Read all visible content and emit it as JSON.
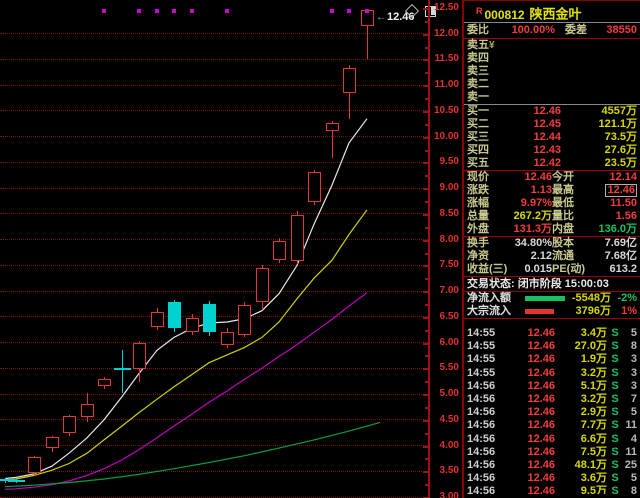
{
  "colors": {
    "up": "#e23535",
    "down": "#00d2d2",
    "ma_white": "#e8e8e8",
    "ma_yellow": "#d0d000",
    "ma_magenta": "#c000c0",
    "ma_green": "#00a040",
    "grid": "#7a1212",
    "axis_text": "#e03030",
    "mark": "#d000d0",
    "red": "#f23c3c",
    "green": "#18c060",
    "yellow": "#d8d800",
    "white": "#d8d8d8"
  },
  "chart_data": {
    "type": "candlestick",
    "y_axis": {
      "max": 12.5,
      "min": 3.0,
      "tick_labels": [
        "12.50",
        "12.00",
        "11.50",
        "11.00",
        "10.50",
        "10.00",
        "9.50",
        "9.00",
        "8.50",
        "8.00",
        "7.50",
        "7.00",
        "6.50",
        "6.00",
        "5.50",
        "5.00",
        "4.50",
        "4.00",
        "3.50",
        "3.00"
      ]
    },
    "last_price_label": "12.46",
    "candles": [
      [
        5,
        3.34,
        3.37,
        3.28,
        3.31,
        "d"
      ],
      [
        16,
        3.31,
        3.36,
        3.27,
        3.33,
        "d"
      ],
      [
        34,
        3.47,
        3.8,
        3.45,
        3.78,
        "u"
      ],
      [
        52,
        3.95,
        4.18,
        3.86,
        4.16,
        "u"
      ],
      [
        69,
        4.24,
        4.6,
        4.2,
        4.57,
        "u"
      ],
      [
        87,
        4.56,
        5.03,
        4.47,
        4.81,
        "u"
      ],
      [
        104,
        5.16,
        5.33,
        5.1,
        5.29,
        "u"
      ],
      [
        122,
        5.5,
        5.86,
        5.03,
        5.5,
        "d"
      ],
      [
        139,
        5.49,
        6.04,
        5.24,
        6.0,
        "u"
      ],
      [
        157,
        6.3,
        6.67,
        6.25,
        6.6,
        "u"
      ],
      [
        174,
        6.79,
        6.82,
        6.2,
        6.28,
        "d"
      ],
      [
        192,
        6.21,
        6.55,
        6.15,
        6.48,
        "u"
      ],
      [
        209,
        6.75,
        6.8,
        6.12,
        6.2,
        "d"
      ],
      [
        227,
        5.95,
        6.28,
        5.9,
        6.21,
        "u"
      ],
      [
        244,
        6.15,
        6.78,
        6.1,
        6.73,
        "u"
      ],
      [
        262,
        6.79,
        7.5,
        6.63,
        7.45,
        "u"
      ],
      [
        279,
        7.62,
        8.03,
        7.55,
        7.98,
        "u"
      ],
      [
        297,
        7.58,
        8.55,
        7.52,
        8.48,
        "u"
      ],
      [
        314,
        8.74,
        9.36,
        8.68,
        9.32,
        "u"
      ],
      [
        332,
        10.11,
        10.31,
        9.59,
        10.26,
        "u"
      ],
      [
        349,
        10.85,
        11.4,
        10.36,
        11.33,
        "u"
      ],
      [
        367,
        12.14,
        12.46,
        11.5,
        12.46,
        "u"
      ]
    ],
    "ma_lines": [
      {
        "name": "ma-short-white",
        "color": "ma_white",
        "points": [
          [
            5,
            3.36
          ],
          [
            16,
            3.38
          ],
          [
            34,
            3.45
          ],
          [
            52,
            3.6
          ],
          [
            69,
            3.85
          ],
          [
            87,
            4.15
          ],
          [
            104,
            4.5
          ],
          [
            122,
            4.95
          ],
          [
            139,
            5.4
          ],
          [
            157,
            5.85
          ],
          [
            174,
            6.1
          ],
          [
            192,
            6.28
          ],
          [
            209,
            6.38
          ],
          [
            227,
            6.4
          ],
          [
            244,
            6.46
          ],
          [
            262,
            6.62
          ],
          [
            279,
            6.95
          ],
          [
            297,
            7.5
          ],
          [
            314,
            8.3
          ],
          [
            332,
            9.06
          ],
          [
            349,
            9.88
          ],
          [
            367,
            10.35
          ]
        ]
      },
      {
        "name": "ma-mid-yellow",
        "color": "ma_yellow",
        "points": [
          [
            5,
            3.33
          ],
          [
            16,
            3.35
          ],
          [
            34,
            3.42
          ],
          [
            52,
            3.52
          ],
          [
            69,
            3.65
          ],
          [
            87,
            3.85
          ],
          [
            104,
            4.11
          ],
          [
            122,
            4.38
          ],
          [
            139,
            4.64
          ],
          [
            157,
            4.9
          ],
          [
            174,
            5.14
          ],
          [
            192,
            5.38
          ],
          [
            209,
            5.61
          ],
          [
            227,
            5.76
          ],
          [
            244,
            5.9
          ],
          [
            262,
            6.1
          ],
          [
            279,
            6.4
          ],
          [
            297,
            6.85
          ],
          [
            314,
            7.25
          ],
          [
            332,
            7.6
          ],
          [
            349,
            8.1
          ],
          [
            367,
            8.58
          ]
        ]
      },
      {
        "name": "ma-long-magenta",
        "color": "ma_magenta",
        "points": [
          [
            5,
            3.15
          ],
          [
            16,
            3.16
          ],
          [
            34,
            3.19
          ],
          [
            52,
            3.24
          ],
          [
            69,
            3.31
          ],
          [
            87,
            3.42
          ],
          [
            104,
            3.55
          ],
          [
            122,
            3.72
          ],
          [
            139,
            3.92
          ],
          [
            157,
            4.15
          ],
          [
            174,
            4.38
          ],
          [
            192,
            4.61
          ],
          [
            209,
            4.84
          ],
          [
            227,
            5.06
          ],
          [
            244,
            5.28
          ],
          [
            262,
            5.5
          ],
          [
            279,
            5.73
          ],
          [
            297,
            5.96
          ],
          [
            314,
            6.2
          ],
          [
            332,
            6.45
          ],
          [
            349,
            6.71
          ],
          [
            367,
            6.97
          ]
        ]
      },
      {
        "name": "ma-longest-green",
        "color": "ma_green",
        "points": [
          [
            5,
            3.2
          ],
          [
            34,
            3.23
          ],
          [
            69,
            3.28
          ],
          [
            104,
            3.35
          ],
          [
            139,
            3.44
          ],
          [
            174,
            3.55
          ],
          [
            209,
            3.67
          ],
          [
            244,
            3.8
          ],
          [
            279,
            3.95
          ],
          [
            314,
            4.11
          ],
          [
            349,
            4.28
          ],
          [
            380,
            4.45
          ]
        ]
      }
    ],
    "mark_dots_x": [
      104,
      139,
      157,
      174,
      192,
      227,
      332,
      349,
      367
    ],
    "price_tag_arrow": "←"
  },
  "stock": {
    "prefix": "R",
    "code": "000812",
    "name": "陕西金叶"
  },
  "order_book": {
    "weibi_label": "委比",
    "weibi_value": "100.00%",
    "weicha_label": "委差",
    "weicha_value": "38550",
    "sell_extra": "¥",
    "sells": [
      {
        "label": "卖五",
        "price": "",
        "vol": ""
      },
      {
        "label": "卖四",
        "price": "",
        "vol": ""
      },
      {
        "label": "卖三",
        "price": "",
        "vol": ""
      },
      {
        "label": "卖二",
        "price": "",
        "vol": ""
      },
      {
        "label": "卖一",
        "price": "",
        "vol": ""
      }
    ],
    "buys": [
      {
        "label": "买一",
        "price": "12.46",
        "vol": "4557万"
      },
      {
        "label": "买二",
        "price": "12.45",
        "vol": "121.1万"
      },
      {
        "label": "买三",
        "price": "12.44",
        "vol": "73.5万"
      },
      {
        "label": "买四",
        "price": "12.43",
        "vol": "27.6万"
      },
      {
        "label": "买五",
        "price": "12.42",
        "vol": "23.5万"
      }
    ]
  },
  "stats_block1": [
    {
      "l1": "现价",
      "v1": "12.46",
      "c1": "r",
      "l2": "今开",
      "v2": "12.14",
      "c2": "r",
      "box2": false
    },
    {
      "l1": "涨跌",
      "v1": "1.13",
      "c1": "r",
      "l2": "最高",
      "v2": "12.46",
      "c2": "r",
      "box2": true
    },
    {
      "l1": "涨幅",
      "v1": "9.97%",
      "c1": "r",
      "l2": "最低",
      "v2": "11.50",
      "c2": "r",
      "box2": false
    },
    {
      "l1": "总量",
      "v1": "267.2万",
      "c1": "y",
      "l2": "量比",
      "v2": "1.56",
      "c2": "r",
      "box2": false
    },
    {
      "l1": "外盘",
      "v1": "131.3万",
      "c1": "r",
      "l2": "内盘",
      "v2": "136.0万",
      "c2": "g",
      "box2": false
    }
  ],
  "stats_block2": [
    {
      "l1": "换手",
      "v1": "34.80%",
      "c1": "w",
      "l2": "股本",
      "v2": "7.69亿",
      "c2": "w",
      "box2": false
    },
    {
      "l1": "净资",
      "v1": "2.12",
      "c1": "w",
      "l2": "流通",
      "v2": "7.68亿",
      "c2": "w",
      "box2": false
    },
    {
      "l1": "收益(三)",
      "v1": "0.015",
      "c1": "w",
      "l2": "PE(动)",
      "v2": "613.2",
      "c2": "w",
      "box2": false
    }
  ],
  "status": {
    "label": "交易状态:",
    "value": "闭市阶段 15:00:03"
  },
  "flows": [
    {
      "label": "净流入额",
      "bar_color": "#18c060",
      "bar_len": 40,
      "value": "-5548万",
      "vc": "y",
      "pct": "-2%",
      "pc": "g"
    },
    {
      "label": "大宗流入",
      "bar_color": "#e23535",
      "bar_len": 29,
      "value": "3796万",
      "vc": "y",
      "pct": "1%",
      "pc": "r"
    }
  ],
  "ticks": [
    {
      "time": "14:55",
      "price": "12.46",
      "vol": "3.4万",
      "side": "S",
      "count": "5"
    },
    {
      "time": "14:55",
      "price": "12.46",
      "vol": "27.0万",
      "side": "S",
      "count": "8"
    },
    {
      "time": "14:55",
      "price": "12.46",
      "vol": "1.9万",
      "side": "S",
      "count": "3"
    },
    {
      "time": "14:55",
      "price": "12.46",
      "vol": "3.2万",
      "side": "S",
      "count": "3"
    },
    {
      "time": "14:56",
      "price": "12.46",
      "vol": "5.1万",
      "side": "S",
      "count": "3"
    },
    {
      "time": "14:56",
      "price": "12.46",
      "vol": "3.2万",
      "side": "S",
      "count": "7"
    },
    {
      "time": "14:56",
      "price": "12.46",
      "vol": "2.9万",
      "side": "S",
      "count": "5"
    },
    {
      "time": "14:56",
      "price": "12.46",
      "vol": "7.7万",
      "side": "S",
      "count": "11"
    },
    {
      "time": "14:56",
      "price": "12.46",
      "vol": "6.6万",
      "side": "S",
      "count": "4"
    },
    {
      "time": "14:56",
      "price": "12.46",
      "vol": "7.5万",
      "side": "S",
      "count": "11"
    },
    {
      "time": "14:56",
      "price": "12.46",
      "vol": "48.1万",
      "side": "S",
      "count": "25"
    },
    {
      "time": "14:56",
      "price": "12.46",
      "vol": "3.6万",
      "side": "S",
      "count": "5"
    },
    {
      "time": "14:56",
      "price": "12.46",
      "vol": "9.5万",
      "side": "S",
      "count": "8"
    }
  ]
}
